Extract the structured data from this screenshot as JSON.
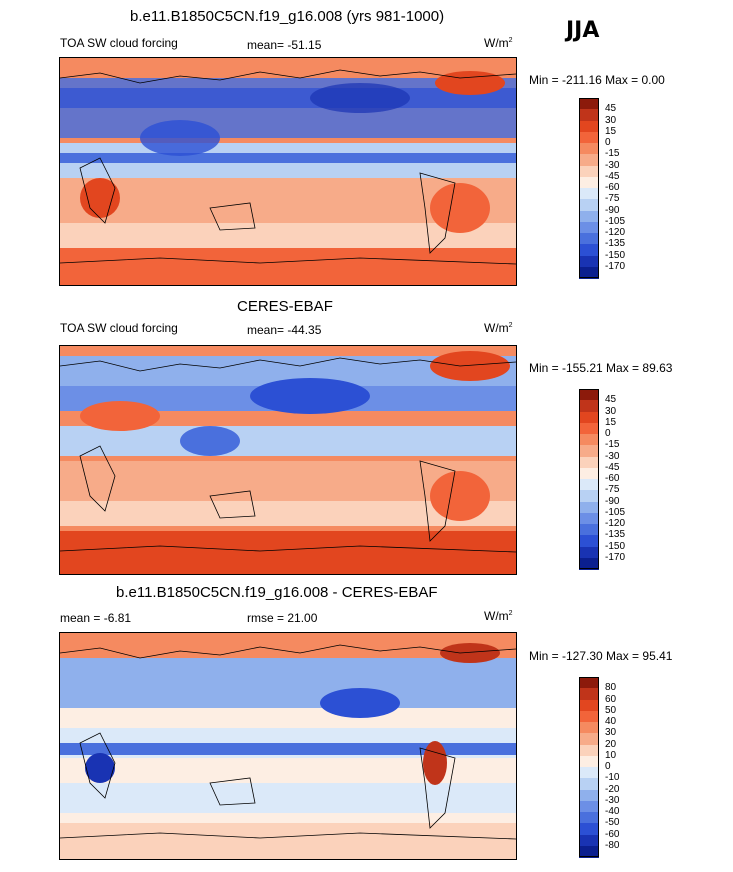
{
  "season": "JJA",
  "panels": [
    {
      "title": "b.e11.B1850C5CN.f19_g16.008 (yrs 981-1000)",
      "left_label": "TOA SW cloud forcing",
      "center_label": "mean= -51.15",
      "unit": "W/m",
      "unit_exp": "2",
      "minmax": "Min = -211.16 Max =   0.00"
    },
    {
      "title": "CERES-EBAF",
      "left_label": "TOA SW cloud forcing",
      "center_label": "mean= -44.35",
      "unit": "W/m",
      "unit_exp": "2",
      "minmax": "Min = -155.21 Max =  89.63"
    },
    {
      "title": "b.e11.B1850C5CN.f19_g16.008 - CERES-EBAF",
      "left_label": "mean =  -6.81",
      "center_label": "rmse =  21.00",
      "unit": "W/m",
      "unit_exp": "2",
      "minmax": "Min = -127.30 Max =  95.41"
    }
  ],
  "chart_data": [
    {
      "type": "heatmap",
      "title": "b.e11.B1850C5CN.f19_g16.008 (yrs 981-1000)",
      "variable": "TOA SW cloud forcing",
      "mean": -51.15,
      "min": -211.16,
      "max": 0.0,
      "colorbar_levels": [
        45,
        30,
        15,
        0,
        -15,
        -30,
        -45,
        -60,
        -75,
        -90,
        -105,
        -120,
        -135,
        -150,
        -170
      ],
      "colors": [
        "#8c1a0b",
        "#c0341a",
        "#e2461f",
        "#f2643a",
        "#f58a60",
        "#f7ab89",
        "#fbd2bb",
        "#fdeee3",
        "#dbe9f9",
        "#b8d1f3",
        "#8fb0ec",
        "#6c8fe6",
        "#4a70dd",
        "#2c50d4",
        "#1933b3",
        "#0b1f8f"
      ]
    },
    {
      "type": "heatmap",
      "title": "CERES-EBAF",
      "variable": "TOA SW cloud forcing",
      "mean": -44.35,
      "min": -155.21,
      "max": 89.63,
      "colorbar_levels": [
        45,
        30,
        15,
        0,
        -15,
        -30,
        -45,
        -60,
        -75,
        -90,
        -105,
        -120,
        -135,
        -150,
        -170
      ],
      "colors": [
        "#8c1a0b",
        "#c0341a",
        "#e2461f",
        "#f2643a",
        "#f58a60",
        "#f7ab89",
        "#fbd2bb",
        "#fdeee3",
        "#dbe9f9",
        "#b8d1f3",
        "#8fb0ec",
        "#6c8fe6",
        "#4a70dd",
        "#2c50d4",
        "#1933b3",
        "#0b1f8f"
      ]
    },
    {
      "type": "heatmap",
      "title": "b.e11.B1850C5CN.f19_g16.008 - CERES-EBAF",
      "mean": -6.81,
      "rmse": 21.0,
      "min": -127.3,
      "max": 95.41,
      "colorbar_levels": [
        80,
        60,
        50,
        40,
        30,
        20,
        10,
        0,
        -10,
        -20,
        -30,
        -40,
        -50,
        -60,
        -80
      ],
      "colors": [
        "#8c1a0b",
        "#c0341a",
        "#e2461f",
        "#f2643a",
        "#f58a60",
        "#f7ab89",
        "#fbd2bb",
        "#fdeee3",
        "#dbe9f9",
        "#b8d1f3",
        "#8fb0ec",
        "#6c8fe6",
        "#4a70dd",
        "#2c50d4",
        "#1933b3",
        "#0b1f8f"
      ]
    }
  ]
}
